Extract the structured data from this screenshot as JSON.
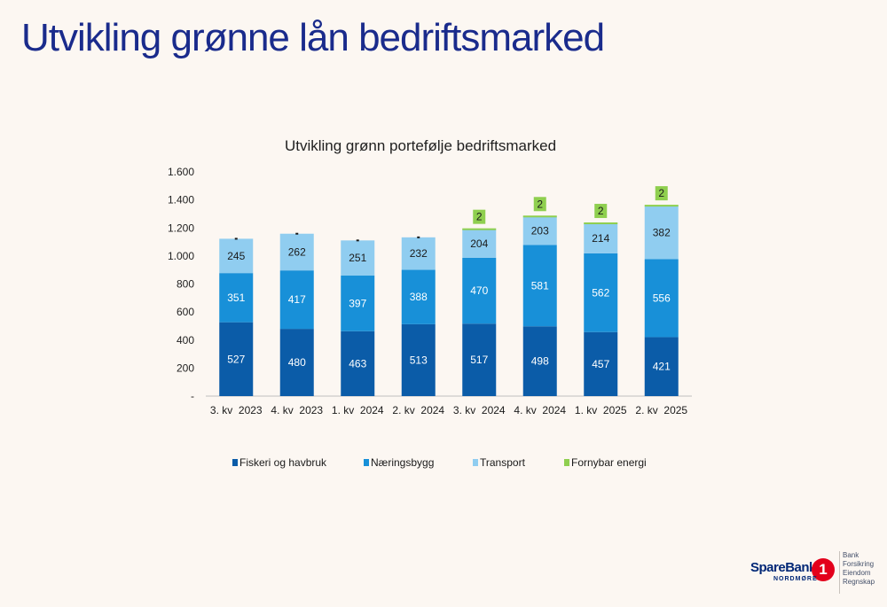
{
  "page": {
    "title": "Utvikling grønne lån bedriftsmarked"
  },
  "brand": {
    "name": "SpareBank",
    "mark": "1",
    "region": "NORDMØRE",
    "services": [
      "Bank",
      "Forsikring",
      "Eiendom",
      "Regnskap"
    ]
  },
  "chart_data": {
    "type": "bar",
    "stacked": true,
    "title": "Utvikling grønn portefølje bedriftsmarked",
    "xlabel": "",
    "ylabel": "",
    "ylim": [
      0,
      1600
    ],
    "yticks": [
      0,
      200,
      400,
      600,
      800,
      1000,
      1200,
      1400,
      1600
    ],
    "ytick_labels": [
      "-",
      "200",
      "400",
      "600",
      "800",
      "1.000",
      "1.200",
      "1.400",
      "1.600"
    ],
    "categories": [
      "3. kv  2023",
      "4. kv  2023",
      "1. kv  2024",
      "2. kv  2024",
      "3. kv  2024",
      "4. kv  2024",
      "1. kv  2025",
      "2. kv  2025"
    ],
    "series": [
      {
        "name": "Fiskeri og havbruk",
        "color": "#0b5ca8",
        "values": [
          527,
          480,
          463,
          513,
          517,
          498,
          457,
          421
        ]
      },
      {
        "name": "Næringsbygg",
        "color": "#1890d8",
        "values": [
          351,
          417,
          397,
          388,
          470,
          581,
          562,
          556
        ]
      },
      {
        "name": "Transport",
        "color": "#90cdf0",
        "values": [
          245,
          262,
          251,
          232,
          204,
          203,
          214,
          382
        ]
      },
      {
        "name": "Fornybar energi",
        "color": "#8fcf4f",
        "values": [
          null,
          null,
          null,
          null,
          2,
          2,
          2,
          2
        ]
      }
    ],
    "legend_position": "bottom",
    "grid": false
  }
}
